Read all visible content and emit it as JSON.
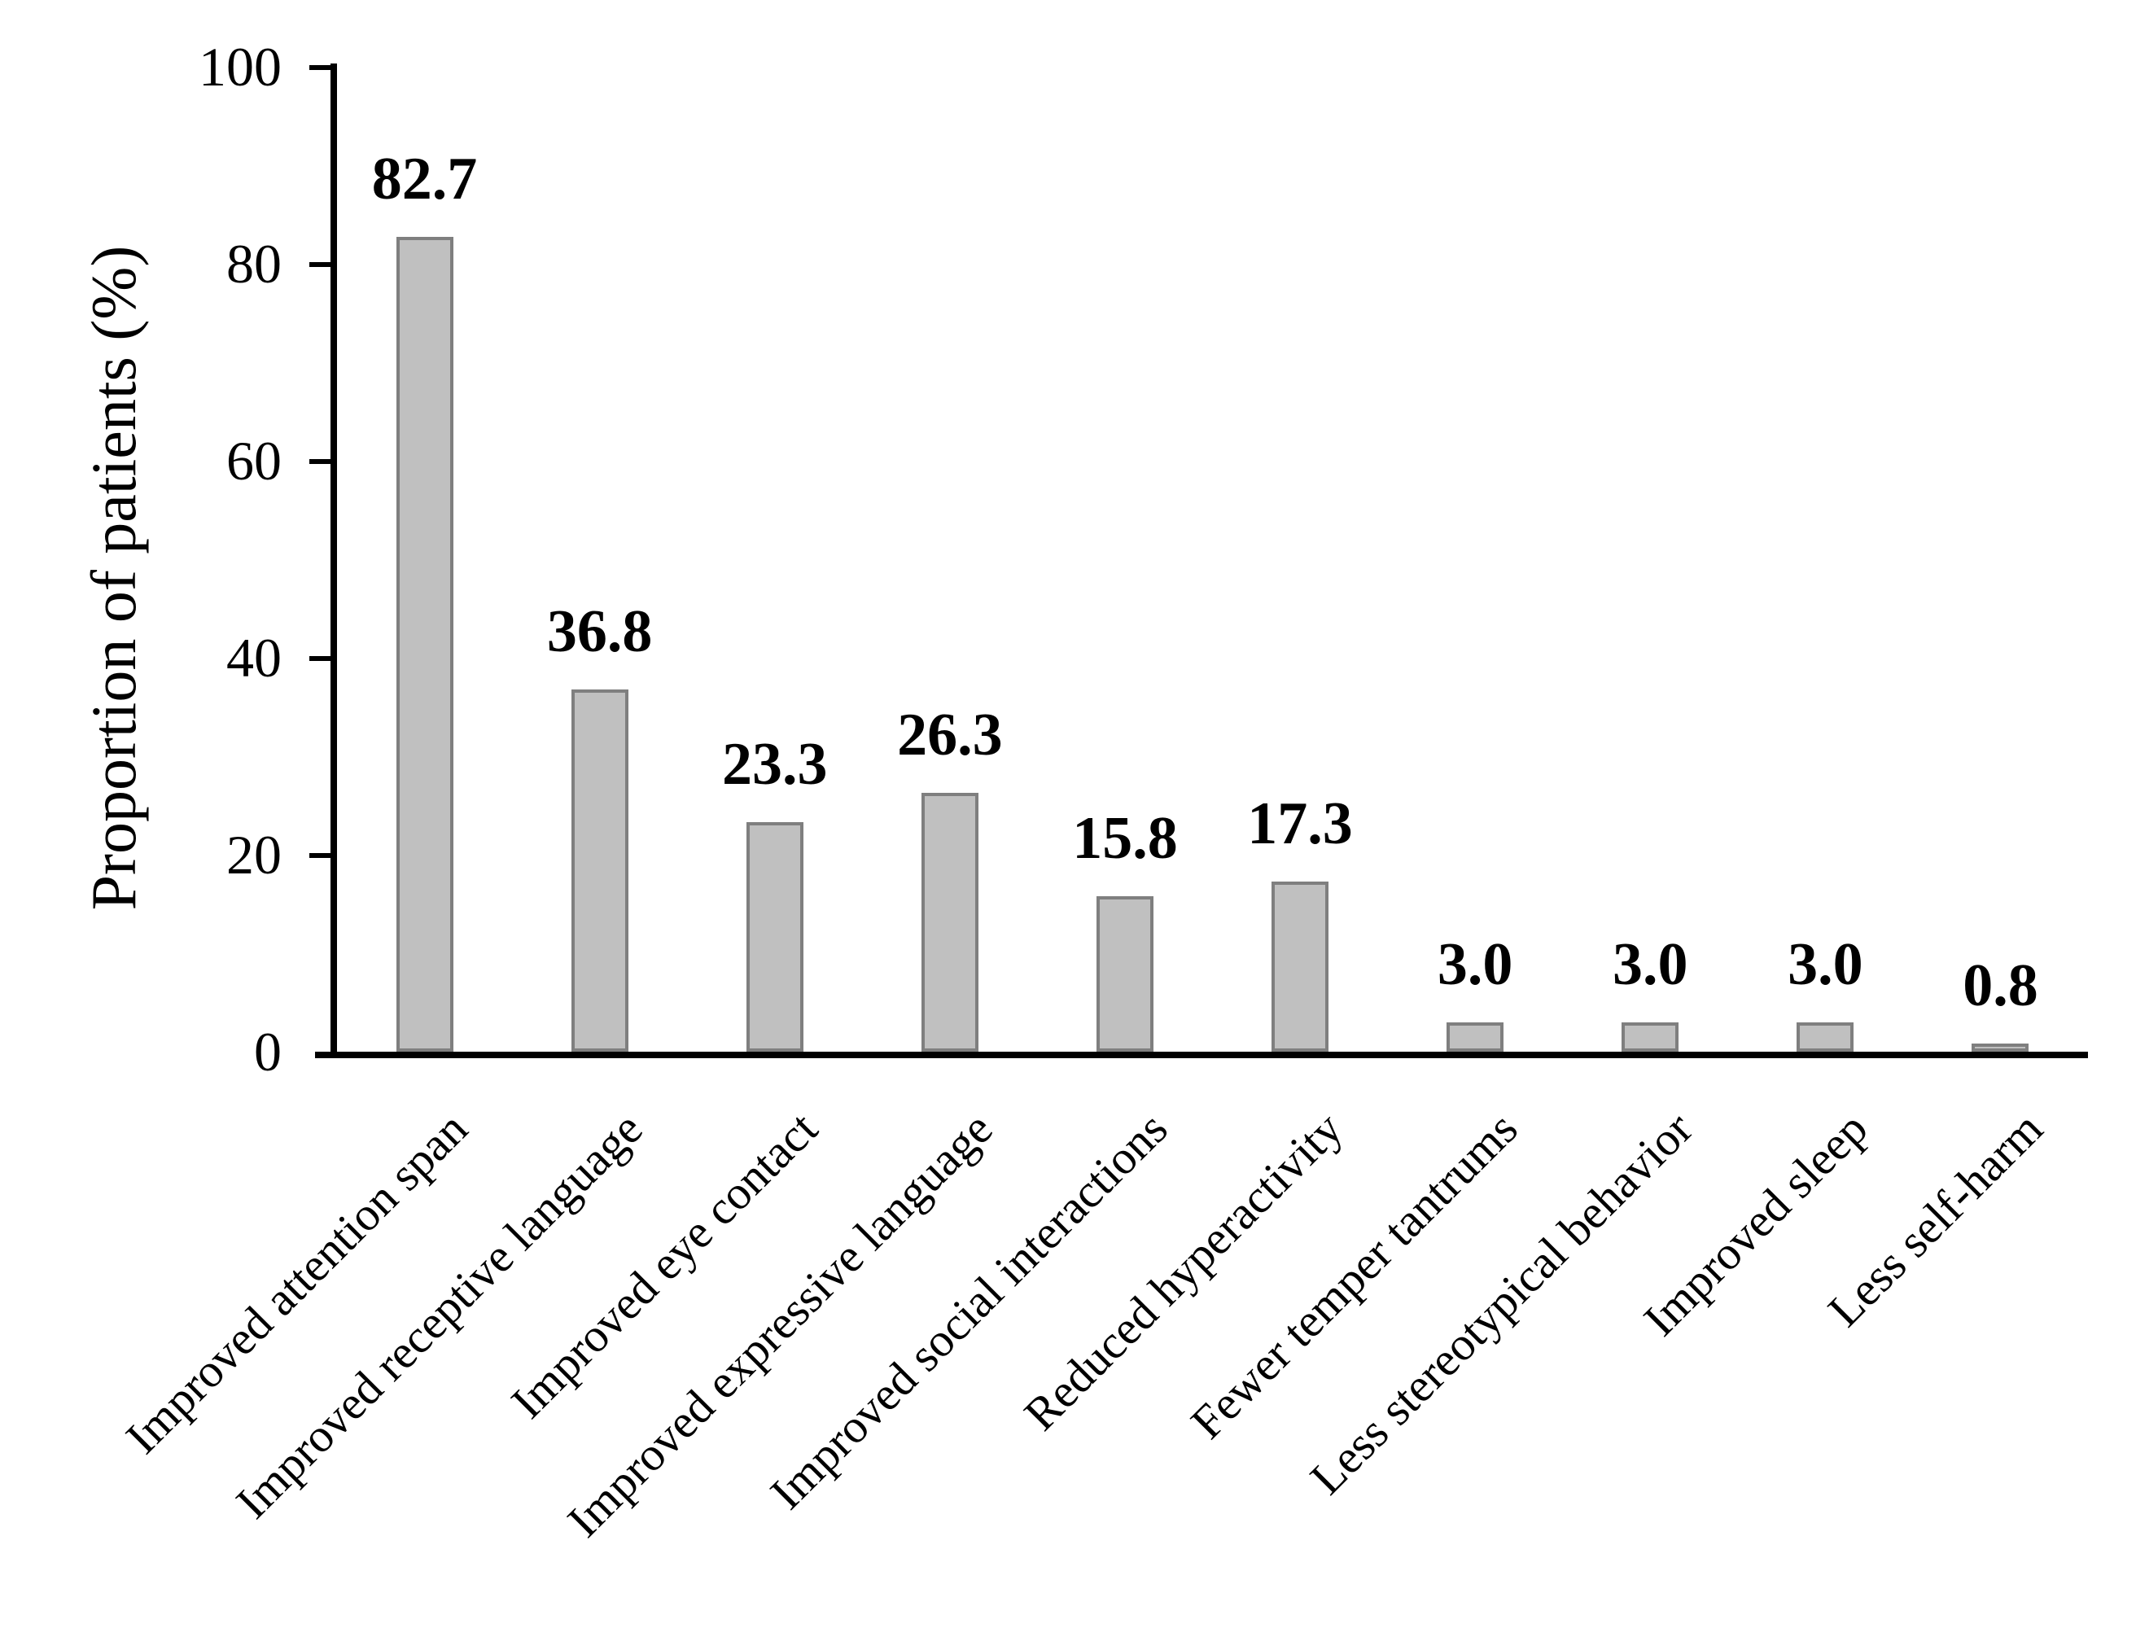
{
  "chart_data": {
    "type": "bar",
    "title": "",
    "xlabel": "",
    "ylabel": "Proportion of patients (%)",
    "categories": [
      "Improved attention span",
      "Improved receptive language",
      "Improved eye contact",
      "Improved expressive language",
      "Improved social interactions",
      "Reduced hyperactivity",
      "Fewer temper tantrums",
      "Less stereotypical behavior",
      "Improved sleep",
      "Less self-harm"
    ],
    "values": [
      82.7,
      36.8,
      23.3,
      26.3,
      15.8,
      17.3,
      3.0,
      3.0,
      3.0,
      0.8
    ],
    "value_labels": [
      "82.7",
      "36.8",
      "23.3",
      "26.3",
      "15.8",
      "17.3",
      "3.0",
      "3.0",
      "3.0",
      "0.8"
    ],
    "ylim": [
      0,
      100
    ],
    "yticks": [
      0,
      20,
      40,
      60,
      80,
      100
    ],
    "grid": false,
    "legend": null,
    "bar_fill_color": "#c0c0c0",
    "bar_border_color": "#7f7f7f",
    "axis_color": "#000000",
    "text_color": "#000000"
  }
}
